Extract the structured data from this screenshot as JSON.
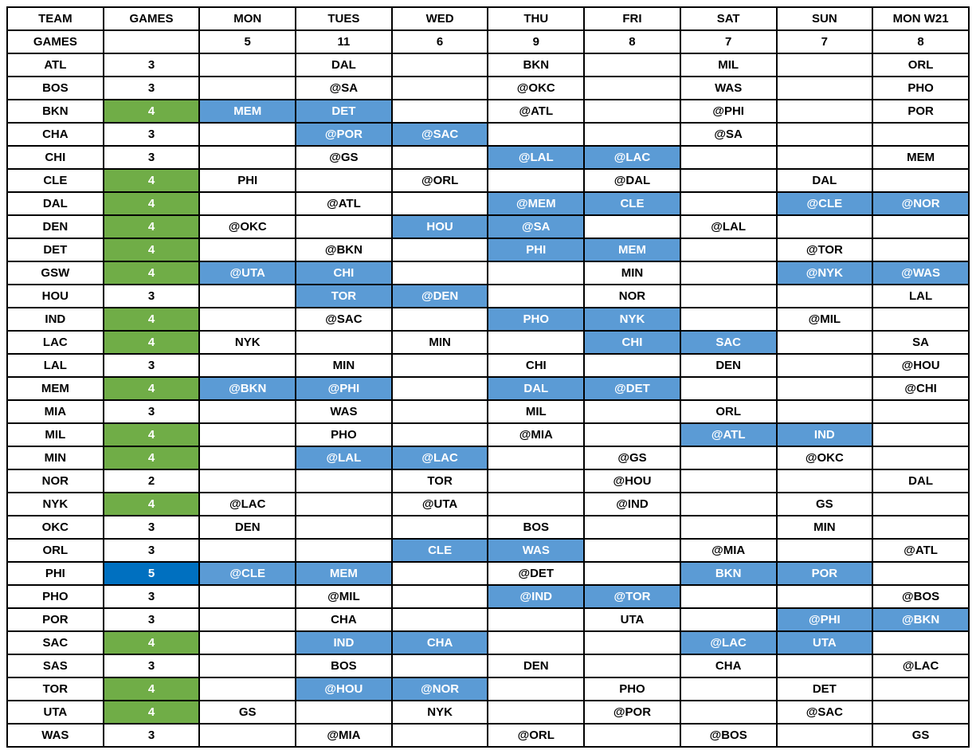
{
  "colors": {
    "back_to_back_highlight": "#5B9BD5",
    "four_games_highlight": "#70AD47",
    "five_games_highlight": "#0070C0",
    "grid_line": "#000000",
    "highlight_text": "#FFFFFF",
    "default_text": "#000000"
  },
  "header": {
    "columns": [
      "TEAM",
      "GAMES",
      "MON",
      "TUES",
      "WED",
      "THU",
      "FRI",
      "SAT",
      "SUN",
      "MON W21"
    ],
    "totals": {
      "label": "GAMES",
      "values": [
        "",
        "5",
        "11",
        "6",
        "9",
        "8",
        "7",
        "7",
        "8"
      ]
    }
  },
  "rows": [
    {
      "team": "ATL",
      "games": "3",
      "games_style": "plain",
      "days": [
        null,
        {
          "opp": "DAL",
          "b2b": false
        },
        null,
        {
          "opp": "BKN",
          "b2b": false
        },
        null,
        {
          "opp": "MIL",
          "b2b": false
        },
        null,
        {
          "opp": "ORL",
          "b2b": false
        }
      ]
    },
    {
      "team": "BOS",
      "games": "3",
      "games_style": "plain",
      "days": [
        null,
        {
          "opp": "@SA",
          "b2b": false
        },
        null,
        {
          "opp": "@OKC",
          "b2b": false
        },
        null,
        {
          "opp": "WAS",
          "b2b": false
        },
        null,
        {
          "opp": "PHO",
          "b2b": false
        }
      ]
    },
    {
      "team": "BKN",
      "games": "4",
      "games_style": "green",
      "days": [
        {
          "opp": "MEM",
          "b2b": true
        },
        {
          "opp": "DET",
          "b2b": true
        },
        null,
        {
          "opp": "@ATL",
          "b2b": false
        },
        null,
        {
          "opp": "@PHI",
          "b2b": false
        },
        null,
        {
          "opp": "POR",
          "b2b": false
        }
      ]
    },
    {
      "team": "CHA",
      "games": "3",
      "games_style": "plain",
      "days": [
        null,
        {
          "opp": "@POR",
          "b2b": true
        },
        {
          "opp": "@SAC",
          "b2b": true
        },
        null,
        null,
        {
          "opp": "@SA",
          "b2b": false
        },
        null,
        null
      ]
    },
    {
      "team": "CHI",
      "games": "3",
      "games_style": "plain",
      "days": [
        null,
        {
          "opp": "@GS",
          "b2b": false
        },
        null,
        {
          "opp": "@LAL",
          "b2b": true
        },
        {
          "opp": "@LAC",
          "b2b": true
        },
        null,
        null,
        {
          "opp": "MEM",
          "b2b": false
        }
      ]
    },
    {
      "team": "CLE",
      "games": "4",
      "games_style": "green",
      "days": [
        {
          "opp": "PHI",
          "b2b": false
        },
        null,
        {
          "opp": "@ORL",
          "b2b": false
        },
        null,
        {
          "opp": "@DAL",
          "b2b": false
        },
        null,
        {
          "opp": "DAL",
          "b2b": false
        },
        null
      ]
    },
    {
      "team": "DAL",
      "games": "4",
      "games_style": "green",
      "days": [
        null,
        {
          "opp": "@ATL",
          "b2b": false
        },
        null,
        {
          "opp": "@MEM",
          "b2b": true
        },
        {
          "opp": "CLE",
          "b2b": true
        },
        null,
        {
          "opp": "@CLE",
          "b2b": true
        },
        {
          "opp": "@NOR",
          "b2b": true
        }
      ]
    },
    {
      "team": "DEN",
      "games": "4",
      "games_style": "green",
      "days": [
        {
          "opp": "@OKC",
          "b2b": false
        },
        null,
        {
          "opp": "HOU",
          "b2b": true
        },
        {
          "opp": "@SA",
          "b2b": true
        },
        null,
        {
          "opp": "@LAL",
          "b2b": false
        },
        null,
        null
      ]
    },
    {
      "team": "DET",
      "games": "4",
      "games_style": "green",
      "days": [
        null,
        {
          "opp": "@BKN",
          "b2b": false
        },
        null,
        {
          "opp": "PHI",
          "b2b": true
        },
        {
          "opp": "MEM",
          "b2b": true
        },
        null,
        {
          "opp": "@TOR",
          "b2b": false
        },
        null
      ]
    },
    {
      "team": "GSW",
      "games": "4",
      "games_style": "green",
      "days": [
        {
          "opp": "@UTA",
          "b2b": true
        },
        {
          "opp": "CHI",
          "b2b": true
        },
        null,
        null,
        {
          "opp": "MIN",
          "b2b": false
        },
        null,
        {
          "opp": "@NYK",
          "b2b": true
        },
        {
          "opp": "@WAS",
          "b2b": true
        }
      ]
    },
    {
      "team": "HOU",
      "games": "3",
      "games_style": "plain",
      "days": [
        null,
        {
          "opp": "TOR",
          "b2b": true
        },
        {
          "opp": "@DEN",
          "b2b": true
        },
        null,
        {
          "opp": "NOR",
          "b2b": false
        },
        null,
        null,
        {
          "opp": "LAL",
          "b2b": false
        }
      ]
    },
    {
      "team": "IND",
      "games": "4",
      "games_style": "green",
      "days": [
        null,
        {
          "opp": "@SAC",
          "b2b": false
        },
        null,
        {
          "opp": "PHO",
          "b2b": true
        },
        {
          "opp": "NYK",
          "b2b": true
        },
        null,
        {
          "opp": "@MIL",
          "b2b": false
        },
        null
      ]
    },
    {
      "team": "LAC",
      "games": "4",
      "games_style": "green",
      "days": [
        {
          "opp": "NYK",
          "b2b": false
        },
        null,
        {
          "opp": "MIN",
          "b2b": false
        },
        null,
        {
          "opp": "CHI",
          "b2b": true
        },
        {
          "opp": "SAC",
          "b2b": true
        },
        null,
        {
          "opp": "SA",
          "b2b": false
        }
      ]
    },
    {
      "team": "LAL",
      "games": "3",
      "games_style": "plain",
      "days": [
        null,
        {
          "opp": "MIN",
          "b2b": false
        },
        null,
        {
          "opp": "CHI",
          "b2b": false
        },
        null,
        {
          "opp": "DEN",
          "b2b": false
        },
        null,
        {
          "opp": "@HOU",
          "b2b": false
        }
      ]
    },
    {
      "team": "MEM",
      "games": "4",
      "games_style": "green",
      "days": [
        {
          "opp": "@BKN",
          "b2b": true
        },
        {
          "opp": "@PHI",
          "b2b": true
        },
        null,
        {
          "opp": "DAL",
          "b2b": true
        },
        {
          "opp": "@DET",
          "b2b": true
        },
        null,
        null,
        {
          "opp": "@CHI",
          "b2b": false
        }
      ]
    },
    {
      "team": "MIA",
      "games": "3",
      "games_style": "plain",
      "days": [
        null,
        {
          "opp": "WAS",
          "b2b": false
        },
        null,
        {
          "opp": "MIL",
          "b2b": false
        },
        null,
        {
          "opp": "ORL",
          "b2b": false
        },
        null,
        null
      ]
    },
    {
      "team": "MIL",
      "games": "4",
      "games_style": "green",
      "days": [
        null,
        {
          "opp": "PHO",
          "b2b": false
        },
        null,
        {
          "opp": "@MIA",
          "b2b": false
        },
        null,
        {
          "opp": "@ATL",
          "b2b": true
        },
        {
          "opp": "IND",
          "b2b": true
        },
        null
      ]
    },
    {
      "team": "MIN",
      "games": "4",
      "games_style": "green",
      "days": [
        null,
        {
          "opp": "@LAL",
          "b2b": true
        },
        {
          "opp": "@LAC",
          "b2b": true
        },
        null,
        {
          "opp": "@GS",
          "b2b": false
        },
        null,
        {
          "opp": "@OKC",
          "b2b": false
        },
        null
      ]
    },
    {
      "team": "NOR",
      "games": "2",
      "games_style": "plain",
      "days": [
        null,
        null,
        {
          "opp": "TOR",
          "b2b": false
        },
        null,
        {
          "opp": "@HOU",
          "b2b": false
        },
        null,
        null,
        {
          "opp": "DAL",
          "b2b": false
        }
      ]
    },
    {
      "team": "NYK",
      "games": "4",
      "games_style": "green",
      "days": [
        {
          "opp": "@LAC",
          "b2b": false
        },
        null,
        {
          "opp": "@UTA",
          "b2b": false
        },
        null,
        {
          "opp": "@IND",
          "b2b": false
        },
        null,
        {
          "opp": "GS",
          "b2b": false
        },
        null
      ]
    },
    {
      "team": "OKC",
      "games": "3",
      "games_style": "plain",
      "days": [
        {
          "opp": "DEN",
          "b2b": false
        },
        null,
        null,
        {
          "opp": "BOS",
          "b2b": false
        },
        null,
        null,
        {
          "opp": "MIN",
          "b2b": false
        },
        null
      ]
    },
    {
      "team": "ORL",
      "games": "3",
      "games_style": "plain",
      "days": [
        null,
        null,
        {
          "opp": "CLE",
          "b2b": true
        },
        {
          "opp": "WAS",
          "b2b": true
        },
        null,
        {
          "opp": "@MIA",
          "b2b": false
        },
        null,
        {
          "opp": "@ATL",
          "b2b": false
        }
      ]
    },
    {
      "team": "PHI",
      "games": "5",
      "games_style": "dark_blue",
      "days": [
        {
          "opp": "@CLE",
          "b2b": true
        },
        {
          "opp": "MEM",
          "b2b": true
        },
        null,
        {
          "opp": "@DET",
          "b2b": false
        },
        null,
        {
          "opp": "BKN",
          "b2b": true
        },
        {
          "opp": "POR",
          "b2b": true
        },
        null
      ]
    },
    {
      "team": "PHO",
      "games": "3",
      "games_style": "plain",
      "days": [
        null,
        {
          "opp": "@MIL",
          "b2b": false
        },
        null,
        {
          "opp": "@IND",
          "b2b": true
        },
        {
          "opp": "@TOR",
          "b2b": true
        },
        null,
        null,
        {
          "opp": "@BOS",
          "b2b": false
        }
      ]
    },
    {
      "team": "POR",
      "games": "3",
      "games_style": "plain",
      "days": [
        null,
        {
          "opp": "CHA",
          "b2b": false
        },
        null,
        null,
        {
          "opp": "UTA",
          "b2b": false
        },
        null,
        {
          "opp": "@PHI",
          "b2b": true
        },
        {
          "opp": "@BKN",
          "b2b": true
        }
      ]
    },
    {
      "team": "SAC",
      "games": "4",
      "games_style": "green",
      "days": [
        null,
        {
          "opp": "IND",
          "b2b": true
        },
        {
          "opp": "CHA",
          "b2b": true
        },
        null,
        null,
        {
          "opp": "@LAC",
          "b2b": true
        },
        {
          "opp": "UTA",
          "b2b": true
        },
        null
      ]
    },
    {
      "team": "SAS",
      "games": "3",
      "games_style": "plain",
      "days": [
        null,
        {
          "opp": "BOS",
          "b2b": false
        },
        null,
        {
          "opp": "DEN",
          "b2b": false
        },
        null,
        {
          "opp": "CHA",
          "b2b": false
        },
        null,
        {
          "opp": "@LAC",
          "b2b": false
        }
      ]
    },
    {
      "team": "TOR",
      "games": "4",
      "games_style": "green",
      "days": [
        null,
        {
          "opp": "@HOU",
          "b2b": true
        },
        {
          "opp": "@NOR",
          "b2b": true
        },
        null,
        {
          "opp": "PHO",
          "b2b": false
        },
        null,
        {
          "opp": "DET",
          "b2b": false
        },
        null
      ]
    },
    {
      "team": "UTA",
      "games": "4",
      "games_style": "green",
      "days": [
        {
          "opp": "GS",
          "b2b": false
        },
        null,
        {
          "opp": "NYK",
          "b2b": false
        },
        null,
        {
          "opp": "@POR",
          "b2b": false
        },
        null,
        {
          "opp": "@SAC",
          "b2b": false
        },
        null
      ]
    },
    {
      "team": "WAS",
      "games": "3",
      "games_style": "plain",
      "days": [
        null,
        {
          "opp": "@MIA",
          "b2b": false
        },
        null,
        {
          "opp": "@ORL",
          "b2b": false
        },
        null,
        {
          "opp": "@BOS",
          "b2b": false
        },
        null,
        {
          "opp": "GS",
          "b2b": false
        }
      ]
    }
  ]
}
